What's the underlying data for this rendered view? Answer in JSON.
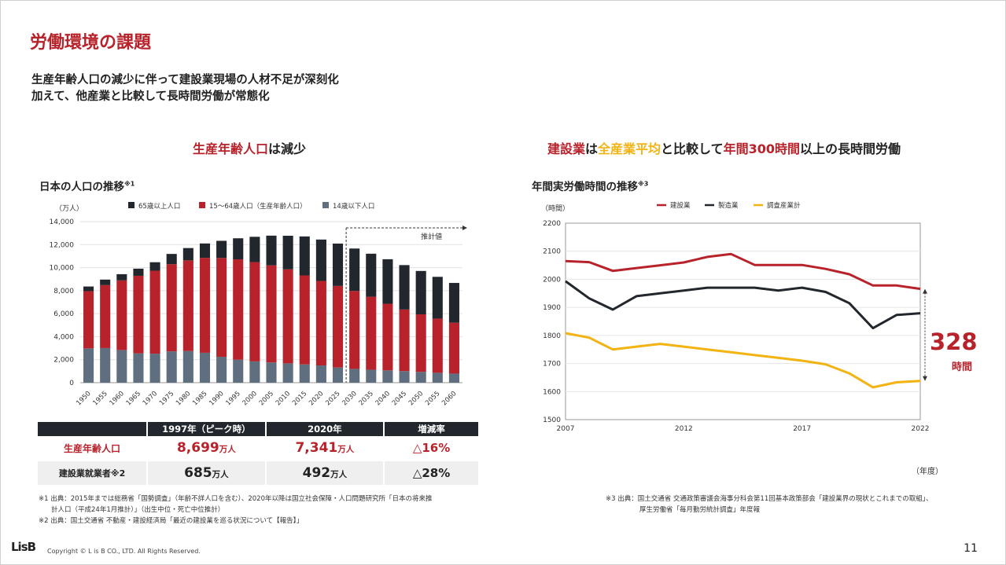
{
  "page": {
    "title": "労働環境の課題",
    "subtitle_line1": "生産年齢人口の減少に伴って建設業現場の人材不足が深刻化",
    "subtitle_line2": "加えて、他産業と比較して長時間労働が常態化",
    "page_number": "11",
    "logo": "LisB",
    "copyright": "Copyright © L is B CO., LTD. All Rights Reserved."
  },
  "left_section": {
    "heading_red": "生産年齢人口",
    "heading_rest": "は減少",
    "chart_title": "日本の人口の推移",
    "chart_title_note": "※1"
  },
  "right_section": {
    "heading_p1": "建設業",
    "heading_p2": "は",
    "heading_p3": "全産業平均",
    "heading_p4": "と比較して",
    "heading_p5": "年間300時間",
    "heading_p6": "以上の長時間労働",
    "chart_title": "年間実労働時間の推移",
    "chart_title_note": "※3",
    "diff_value": "328",
    "diff_unit": "時間",
    "x_unit": "（年度）"
  },
  "chart_data": [
    {
      "type": "bar",
      "stacked": true,
      "unit": "（万人）",
      "categories": [
        "1950",
        "1955",
        "1960",
        "1965",
        "1970",
        "1975",
        "1980",
        "1985",
        "1990",
        "1995",
        "2000",
        "2005",
        "2010",
        "2015",
        "2020",
        "2025",
        "2030",
        "2035",
        "2040",
        "2045",
        "2050",
        "2055",
        "2060"
      ],
      "series": [
        {
          "name": "14歳以下人口",
          "color": "#5f6f7f",
          "values": [
            2980,
            3010,
            2840,
            2550,
            2520,
            2720,
            2750,
            2600,
            2250,
            2000,
            1850,
            1760,
            1680,
            1590,
            1500,
            1320,
            1200,
            1130,
            1070,
            1010,
            940,
            860,
            790
          ]
        },
        {
          "name": "15〜64歳人口（生産年齢人口）",
          "color": "#b8232b",
          "values": [
            4970,
            5470,
            6050,
            6740,
            7210,
            7580,
            7880,
            8250,
            8590,
            8720,
            8630,
            8440,
            8170,
            7730,
            7340,
            7090,
            6770,
            6340,
            5790,
            5350,
            5000,
            4710,
            4420
          ]
        },
        {
          "name": "65歳以上人口",
          "color": "#22272e",
          "values": [
            410,
            480,
            540,
            620,
            740,
            890,
            1070,
            1250,
            1490,
            1830,
            2200,
            2580,
            2920,
            3390,
            3600,
            3680,
            3690,
            3740,
            3870,
            3860,
            3770,
            3630,
            3460
          ]
        }
      ],
      "ylim": [
        0,
        14000
      ],
      "yticks": [
        "0",
        "2,000",
        "4,000",
        "6,000",
        "8,000",
        "10,000",
        "12,000",
        "14,000"
      ],
      "projection_label": "推計値",
      "projection_start": "2030",
      "legend": "top"
    },
    {
      "type": "line",
      "unit": "（時間）",
      "x_ticks": [
        "2007",
        "2012",
        "2017",
        "2022"
      ],
      "x_range": [
        2007,
        2022
      ],
      "ylim": [
        1500,
        2200
      ],
      "yticks": [
        "1500",
        "1600",
        "1700",
        "1800",
        "1900",
        "2000",
        "2100",
        "2200"
      ],
      "series": [
        {
          "name": "建設業",
          "color": "#b8232b",
          "x": [
            2007,
            2008,
            2009,
            2010,
            2011,
            2012,
            2013,
            2014,
            2015,
            2016,
            2017,
            2018,
            2019,
            2020,
            2021,
            2022
          ],
          "y": [
            2065,
            2061,
            2030,
            2040,
            2050,
            2060,
            2080,
            2090,
            2051,
            2051,
            2051,
            2037,
            2018,
            1978,
            1978,
            1966
          ]
        },
        {
          "name": "製造業",
          "color": "#22272e",
          "x": [
            2007,
            2008,
            2009,
            2010,
            2011,
            2012,
            2013,
            2014,
            2015,
            2016,
            2017,
            2018,
            2019,
            2020,
            2021,
            2022
          ],
          "y": [
            1993,
            1932,
            1892,
            1940,
            1950,
            1960,
            1970,
            1970,
            1970,
            1960,
            1970,
            1955,
            1915,
            1826,
            1873,
            1879
          ]
        },
        {
          "name": "調査産業計",
          "color": "#f2b313",
          "x": [
            2007,
            2008,
            2009,
            2010,
            2011,
            2012,
            2013,
            2014,
            2015,
            2016,
            2017,
            2018,
            2019,
            2020,
            2021,
            2022
          ],
          "y": [
            1808,
            1792,
            1750,
            1760,
            1770,
            1760,
            1750,
            1740,
            1730,
            1720,
            1710,
            1697,
            1665,
            1615,
            1633,
            1638
          ]
        }
      ],
      "legend": "top"
    }
  ],
  "table": {
    "headers": [
      "",
      "1997年（ピーク時）",
      "2020年",
      "増減率"
    ],
    "rows": [
      {
        "label": "生産年齢人口",
        "v1": "8,699",
        "v1_unit": "万人",
        "v2": "7,341",
        "v2_unit": "万人",
        "rate": "△16%"
      },
      {
        "label": "建設業就業者※2",
        "v1": "685",
        "v1_unit": "万人",
        "v2": "492",
        "v2_unit": "万人",
        "rate": "△28%"
      }
    ]
  },
  "notes": {
    "n1_line1": "※1 出典：2015年までは総務省「国勢調査」（年齢不詳人口を含む）、2020年以降は国立社会保障・人口問題研究所「日本の将来推",
    "n1_line2": "計人口（平成24年1月推計）」（出生中位・死亡中位推計）",
    "n2": "※2 出典：国土交通省 不動産・建設経済局「最近の建設業を巡る状況について【報告】」",
    "n3_line1": "※3 出典：国土交通省 交通政策審議会海事分科会第11回基本政策部会「建設業界の現状とこれまでの取組」、",
    "n3_line2": "厚生労働省「毎月勤労統計調査」年度報"
  }
}
